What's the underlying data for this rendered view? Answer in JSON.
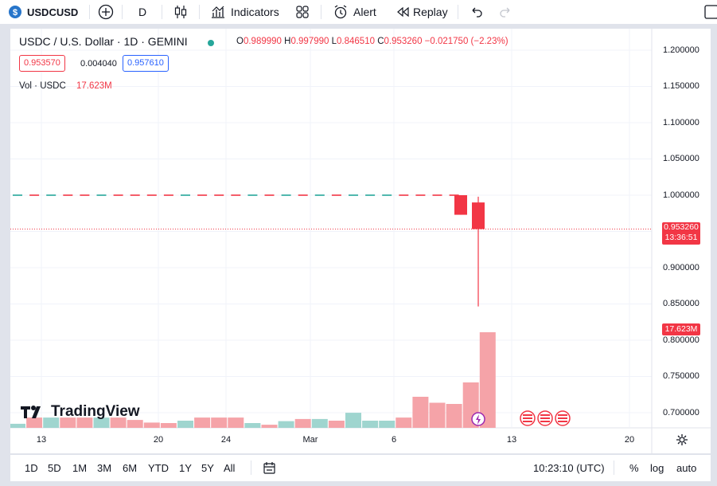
{
  "toolbar": {
    "symbol": "USDCUSD",
    "interval": "D",
    "indicators_label": "Indicators",
    "alert_label": "Alert",
    "replay_label": "Replay"
  },
  "legend": {
    "title": "USDC / U.S. Dollar · 1D · GEMINI",
    "o_key": "O",
    "o_val": "0.989990",
    "h_key": "H",
    "h_val": "0.997990",
    "l_key": "L",
    "l_val": "0.846510",
    "c_key": "C",
    "c_val": "0.953260",
    "change": "−0.021750 (−2.23%)",
    "bid": "0.953570",
    "spread": "0.004040",
    "ask": "0.957610",
    "vol_label": "Vol · USDC",
    "vol_val": "17.623M"
  },
  "price_axis": {
    "labels": [
      "1.200000",
      "1.150000",
      "1.100000",
      "1.050000",
      "1.000000",
      "0.900000",
      "0.850000",
      "0.800000",
      "0.750000",
      "0.700000"
    ],
    "last_price": "0.953260",
    "countdown": "13:36:51",
    "last_volume": "17.623M"
  },
  "time_axis": {
    "labels": [
      "13",
      "20",
      "24",
      "Mar",
      "6",
      "13",
      "20"
    ]
  },
  "watermark": "TradingView",
  "bottom": {
    "ranges": [
      "1D",
      "5D",
      "1M",
      "3M",
      "6M",
      "YTD",
      "1Y",
      "5Y",
      "All"
    ],
    "time": "10:23:10 (UTC)",
    "percent": "%",
    "log": "log",
    "auto": "auto"
  },
  "colors": {
    "up": "#26a69a",
    "down": "#f23645",
    "vol_up": "#9fd5cf",
    "vol_down": "#f5a3a8"
  },
  "chart_data": {
    "type": "candlestick",
    "volume_fractions": [
      0.17,
      0.43,
      0.43,
      0.43,
      0.43,
      0.43,
      0.43,
      0.33,
      0.22,
      0.2,
      0.3,
      0.43,
      0.43,
      0.43,
      0.2,
      0.13,
      0.28,
      0.37,
      0.37,
      0.3,
      0.63,
      0.3,
      0.3,
      0.43,
      1.3,
      1.05,
      1.0,
      1.9,
      4.0
    ],
    "volume_up": [
      true,
      false,
      true,
      false,
      false,
      true,
      false,
      false,
      false,
      false,
      true,
      false,
      false,
      false,
      true,
      false,
      true,
      false,
      true,
      false,
      true,
      true,
      true,
      false,
      false,
      false,
      false,
      false,
      false
    ],
    "candles_summary": "flat near 1.000000 then drop",
    "last_candles": [
      {
        "o": 1.0,
        "h": 1.0,
        "l": 0.973,
        "c": 0.973
      },
      {
        "o": 0.98999,
        "h": 0.99799,
        "l": 0.84651,
        "c": 0.95326
      }
    ],
    "ylim": [
      0.68,
      1.21
    ]
  }
}
